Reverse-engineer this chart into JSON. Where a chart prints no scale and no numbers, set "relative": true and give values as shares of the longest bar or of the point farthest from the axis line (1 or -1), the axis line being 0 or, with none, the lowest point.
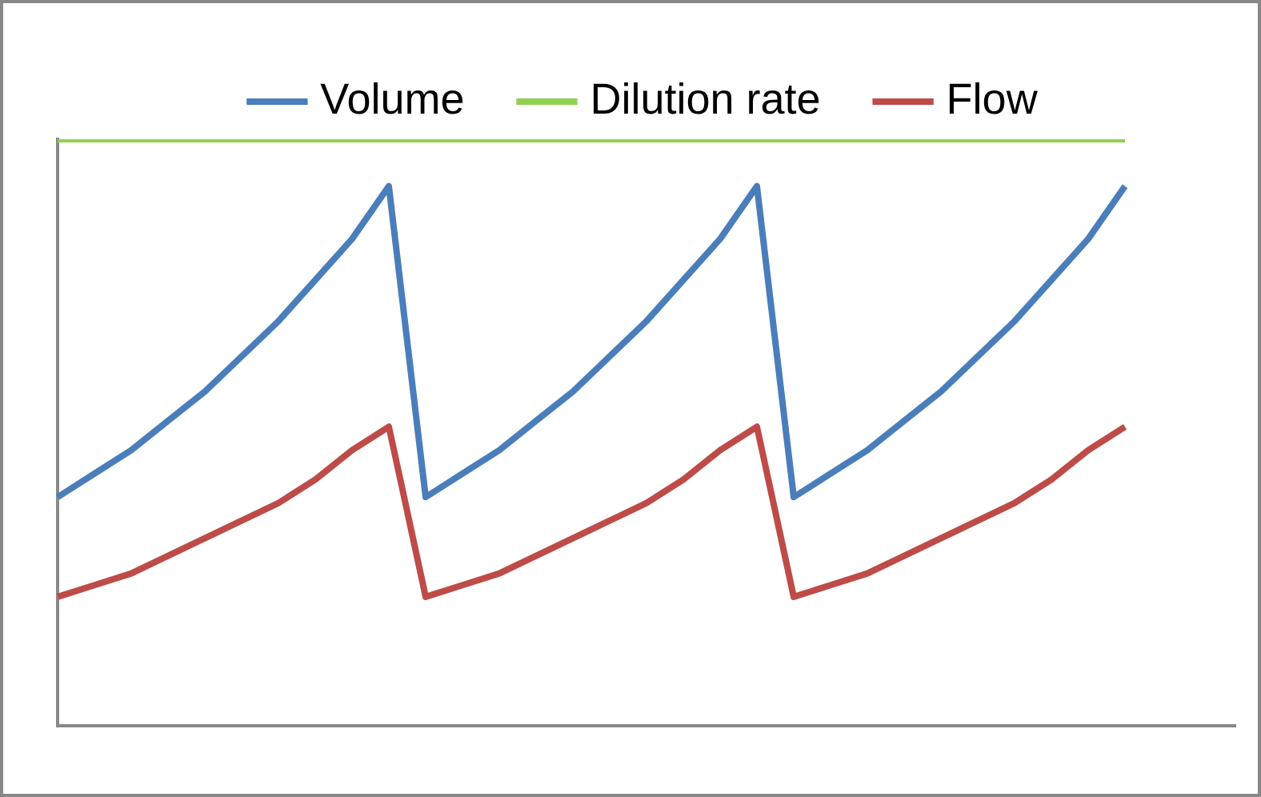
{
  "chart_data": {
    "type": "line",
    "relative": true,
    "legend": "top",
    "grid": false,
    "marker": "none",
    "line_style": "solid",
    "categories": [
      null,
      null,
      null,
      null,
      null,
      null,
      null,
      null,
      null,
      null,
      null,
      null,
      null,
      null,
      null,
      null,
      null,
      null,
      null,
      null,
      null,
      null,
      null,
      null,
      null,
      null,
      null,
      null,
      null,
      null,
      null,
      null,
      null
    ],
    "series": [
      {
        "name": "Volume",
        "color": "#4a7ebb",
        "values": [
          0.39,
          0.43,
          0.47,
          0.52,
          0.57,
          0.63,
          0.69,
          0.76,
          0.83,
          0.92,
          0.39,
          0.43,
          0.47,
          0.52,
          0.57,
          0.63,
          0.69,
          0.76,
          0.83,
          0.92,
          0.39,
          0.43,
          0.47,
          0.52,
          0.57,
          0.63,
          0.69,
          0.76,
          0.83,
          0.92,
          null,
          null,
          null
        ]
      },
      {
        "name": "Dilution rate",
        "color": "#92d050",
        "values": [
          1,
          1,
          1,
          1,
          1,
          1,
          1,
          1,
          1,
          1,
          1,
          1,
          1,
          1,
          1,
          1,
          1,
          1,
          1,
          1,
          1,
          1,
          1,
          1,
          1,
          1,
          1,
          1,
          1,
          1,
          null,
          null,
          null
        ]
      },
      {
        "name": "Flow",
        "color": "#be4b48",
        "values": [
          0.22,
          0.24,
          0.26,
          0.29,
          0.32,
          0.35,
          0.38,
          0.42,
          0.47,
          0.51,
          0.22,
          0.24,
          0.26,
          0.29,
          0.32,
          0.35,
          0.38,
          0.42,
          0.47,
          0.51,
          0.22,
          0.24,
          0.26,
          0.29,
          0.32,
          0.35,
          0.38,
          0.42,
          0.47,
          0.51,
          null,
          null,
          null
        ]
      }
    ]
  }
}
